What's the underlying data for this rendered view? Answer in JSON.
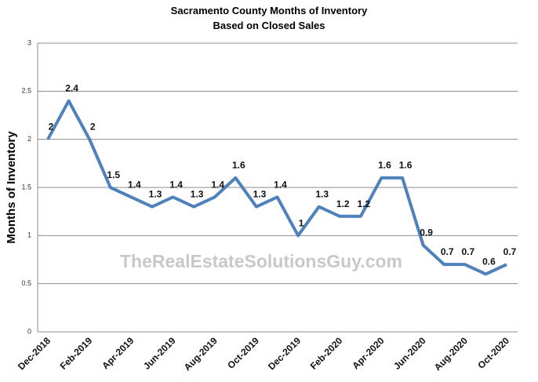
{
  "chart_data": {
    "type": "line",
    "title": "Sacramento County Months of Inventory",
    "subtitle": "Based on Closed Sales",
    "y_label": "Months of Inventory",
    "annotation": "TheRealEstateSolutionsGuy.com",
    "categories": [
      "Dec-2018",
      null,
      "Feb-2019",
      null,
      "Apr-2019",
      null,
      "Jun-2019",
      null,
      "Aug-2019",
      null,
      "Oct-2019",
      null,
      "Dec-2019",
      null,
      "Feb-2020",
      null,
      "Apr-2020",
      null,
      "Jun-2020",
      null,
      "Aug-2020",
      null,
      "Oct-2020"
    ],
    "series": [
      {
        "name": "Months of Inventory",
        "color": "#4f81bd",
        "values": [
          2,
          2.4,
          2,
          1.5,
          1.4,
          1.3,
          1.4,
          1.3,
          1.4,
          1.6,
          1.3,
          1.4,
          1,
          1.3,
          1.2,
          1.2,
          1.6,
          1.6,
          0.9,
          0.7,
          0.7,
          0.6,
          0.7
        ]
      }
    ],
    "ylim": [
      0,
      3
    ],
    "yticks": [
      0,
      0.5,
      1,
      1.5,
      2,
      2.5,
      3
    ],
    "grid": true
  }
}
